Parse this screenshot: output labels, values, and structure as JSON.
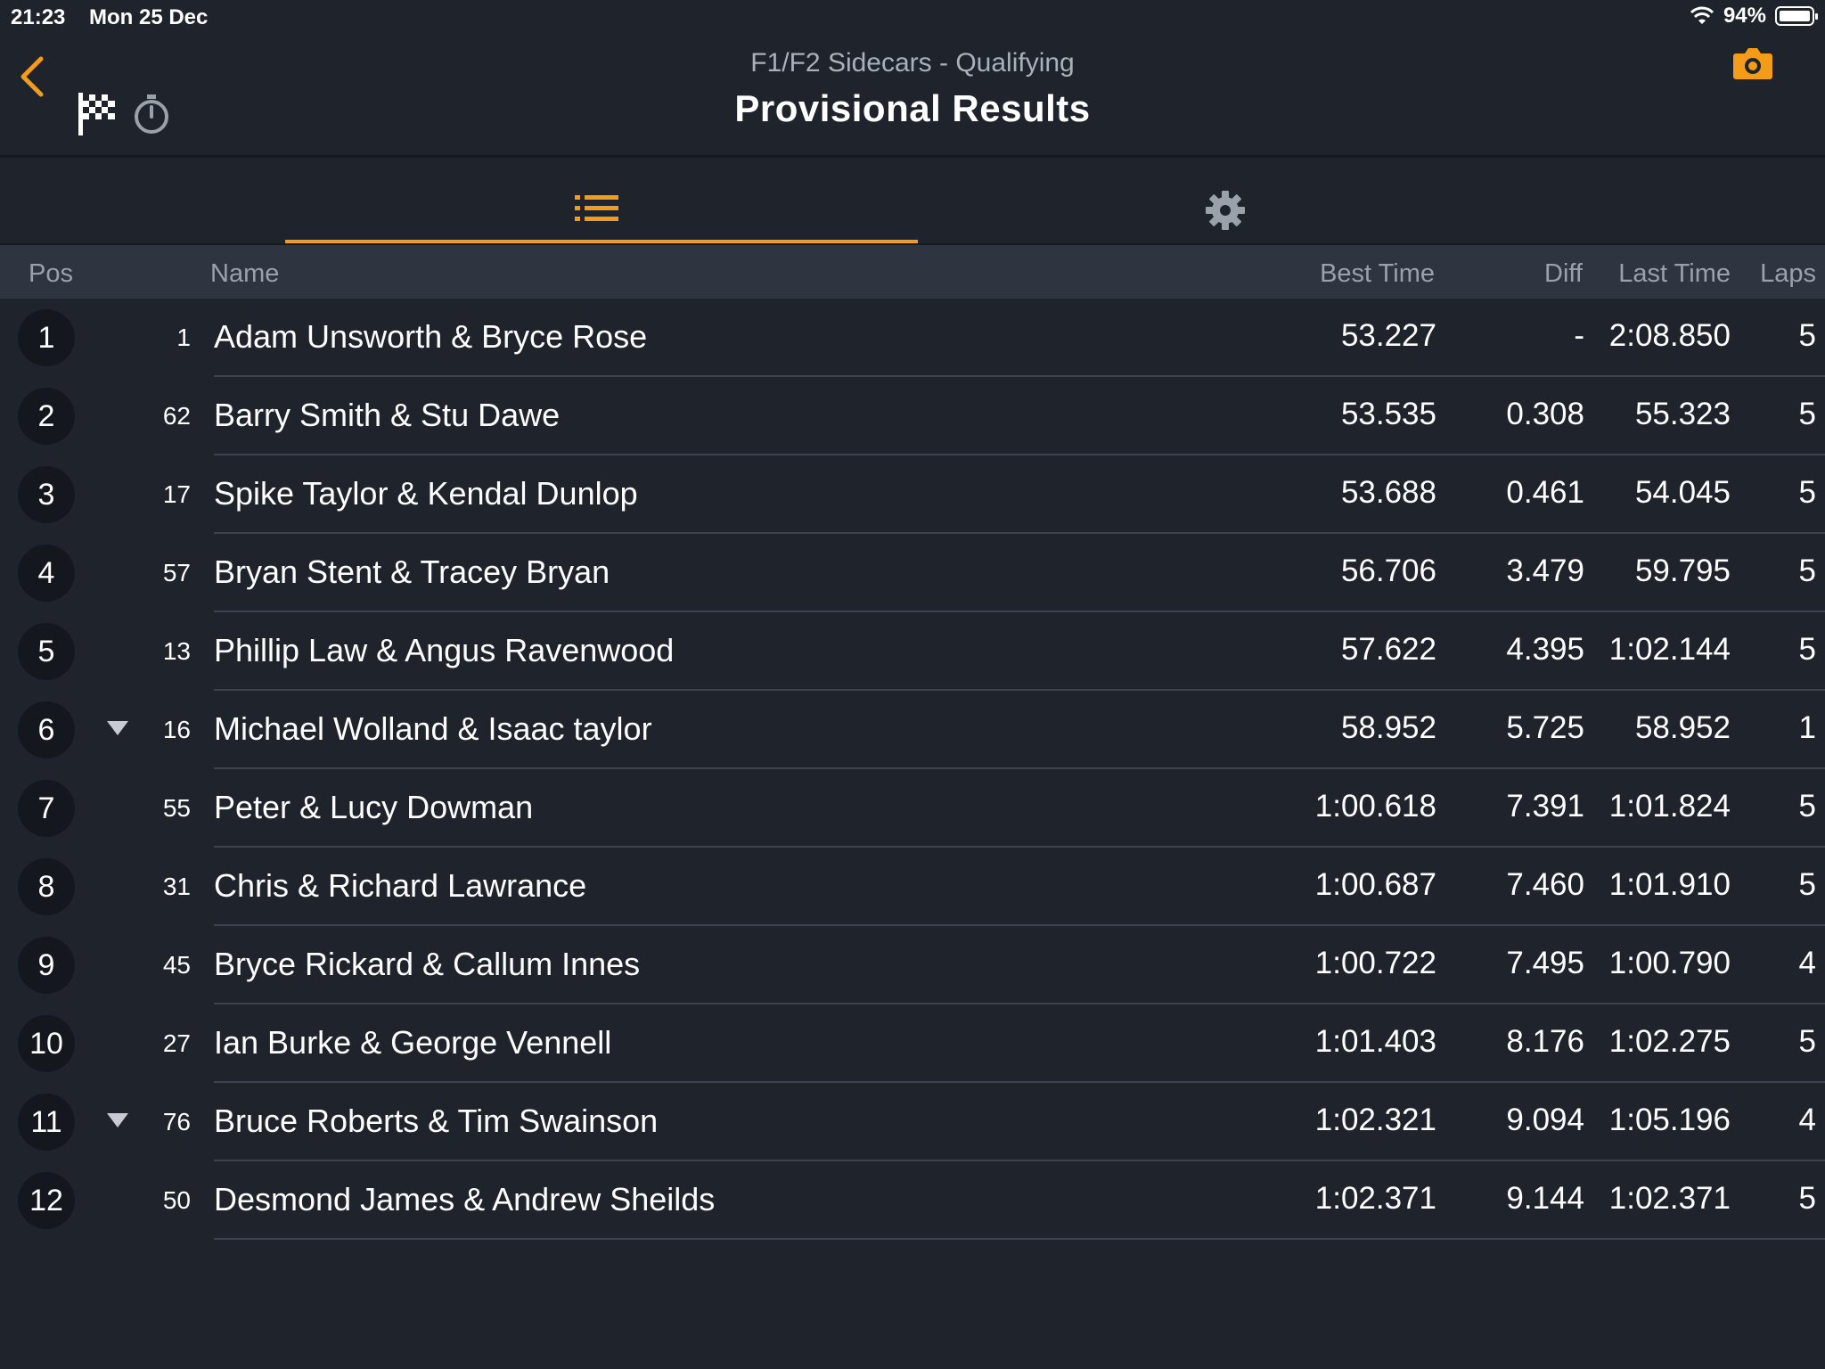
{
  "status_bar": {
    "time": "21:23",
    "date": "Mon 25 Dec",
    "battery": "94%"
  },
  "header": {
    "subtitle": "F1/F2 Sidecars - Qualifying",
    "title": "Provisional Results"
  },
  "colors": {
    "accent": "#f39c1a",
    "background": "#1f242c",
    "header_bar": "#2e3540"
  },
  "tabs": [
    {
      "icon": "list-icon",
      "active": true
    },
    {
      "icon": "gear-icon",
      "active": false
    }
  ],
  "table": {
    "columns": {
      "pos": "Pos",
      "name": "Name",
      "best": "Best Time",
      "diff": "Diff",
      "last": "Last Time",
      "laps": "Laps"
    },
    "rows": [
      {
        "pos": "1",
        "num": "1",
        "name": "Adam Unsworth & Bryce Rose",
        "best": "53.227",
        "diff": "-",
        "last": "2:08.850",
        "laps": "5",
        "down": false
      },
      {
        "pos": "2",
        "num": "62",
        "name": "Barry Smith & Stu Dawe",
        "best": "53.535",
        "diff": "0.308",
        "last": "55.323",
        "laps": "5",
        "down": false
      },
      {
        "pos": "3",
        "num": "17",
        "name": "Spike Taylor & Kendal Dunlop",
        "best": "53.688",
        "diff": "0.461",
        "last": "54.045",
        "laps": "5",
        "down": false
      },
      {
        "pos": "4",
        "num": "57",
        "name": "Bryan Stent & Tracey Bryan",
        "best": "56.706",
        "diff": "3.479",
        "last": "59.795",
        "laps": "5",
        "down": false
      },
      {
        "pos": "5",
        "num": "13",
        "name": "Phillip Law & Angus Ravenwood",
        "best": "57.622",
        "diff": "4.395",
        "last": "1:02.144",
        "laps": "5",
        "down": false
      },
      {
        "pos": "6",
        "num": "16",
        "name": "Michael Wolland & Isaac taylor",
        "best": "58.952",
        "diff": "5.725",
        "last": "58.952",
        "laps": "1",
        "down": true
      },
      {
        "pos": "7",
        "num": "55",
        "name": "Peter & Lucy Dowman",
        "best": "1:00.618",
        "diff": "7.391",
        "last": "1:01.824",
        "laps": "5",
        "down": false
      },
      {
        "pos": "8",
        "num": "31",
        "name": "Chris & Richard Lawrance",
        "best": "1:00.687",
        "diff": "7.460",
        "last": "1:01.910",
        "laps": "5",
        "down": false
      },
      {
        "pos": "9",
        "num": "45",
        "name": "Bryce Rickard & Callum Innes",
        "best": "1:00.722",
        "diff": "7.495",
        "last": "1:00.790",
        "laps": "4",
        "down": false
      },
      {
        "pos": "10",
        "num": "27",
        "name": "Ian Burke & George Vennell",
        "best": "1:01.403",
        "diff": "8.176",
        "last": "1:02.275",
        "laps": "5",
        "down": false
      },
      {
        "pos": "11",
        "num": "76",
        "name": "Bruce Roberts & Tim Swainson",
        "best": "1:02.321",
        "diff": "9.094",
        "last": "1:05.196",
        "laps": "4",
        "down": true
      },
      {
        "pos": "12",
        "num": "50",
        "name": "Desmond James & Andrew Sheilds",
        "best": "1:02.371",
        "diff": "9.144",
        "last": "1:02.371",
        "laps": "5",
        "down": false
      }
    ]
  }
}
